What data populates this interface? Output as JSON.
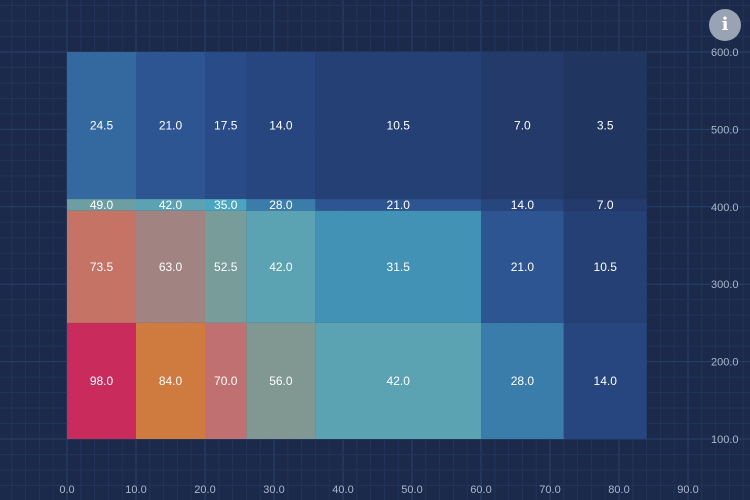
{
  "chart_data": {
    "type": "heatmap",
    "title": "",
    "xlabel": "",
    "ylabel": "",
    "xlim": [
      0,
      90
    ],
    "ylim": [
      50,
      650
    ],
    "x_ticks": [
      "0.0",
      "10.0",
      "20.0",
      "30.0",
      "40.0",
      "50.0",
      "60.0",
      "70.0",
      "80.0",
      "90.0"
    ],
    "y_ticks": [
      "100.0",
      "200.0",
      "300.0",
      "400.0",
      "500.0",
      "600.0"
    ],
    "y_axis_side": "right",
    "grid": true,
    "x_edges": [
      0,
      10,
      20,
      26,
      36,
      60,
      72,
      84
    ],
    "y_edges": [
      100,
      250,
      395,
      410,
      600
    ],
    "rows": [
      {
        "values": [
          98.0,
          84.0,
          70.0,
          56.0,
          42.0,
          28.0,
          14.0
        ],
        "labels": [
          "98.0",
          "84.0",
          "70.0",
          "56.0",
          "42.0",
          "28.0",
          "14.0"
        ]
      },
      {
        "values": [
          73.5,
          63.0,
          52.5,
          42.0,
          31.5,
          21.0,
          10.5
        ],
        "labels": [
          "73.5",
          "63.0",
          "52.5",
          "42.0",
          "31.5",
          "21.0",
          "10.5"
        ]
      },
      {
        "values": [
          49.0,
          42.0,
          35.0,
          28.0,
          21.0,
          14.0,
          7.0
        ],
        "labels": [
          "49.0",
          "42.0",
          "35.0",
          "28.0",
          "21.0",
          "14.0",
          "7.0"
        ]
      },
      {
        "values": [
          24.5,
          21.0,
          17.5,
          14.0,
          10.5,
          7.0,
          3.5
        ],
        "labels": [
          "24.5",
          "21.0",
          "17.5",
          "14.0",
          "10.5",
          "7.0",
          "3.5"
        ]
      }
    ],
    "color_scale": {
      "min": 0,
      "max": 98,
      "stops": [
        {
          "value": 0,
          "color": "#1f2f58"
        },
        {
          "value": 20,
          "color": "#2a4f8e"
        },
        {
          "value": 35,
          "color": "#49a6c2"
        },
        {
          "value": 55,
          "color": "#7d9a94"
        },
        {
          "value": 70,
          "color": "#c07070"
        },
        {
          "value": 84,
          "color": "#cf7a3e"
        },
        {
          "value": 98,
          "color": "#c92c5c"
        }
      ]
    }
  },
  "toolbar": {
    "info_icon": "info-icon"
  },
  "colors": {
    "background": "#1b2a4a",
    "grid_minor": "#21345a",
    "grid_major": "#28406a",
    "tick_text": "#aab6cc"
  }
}
